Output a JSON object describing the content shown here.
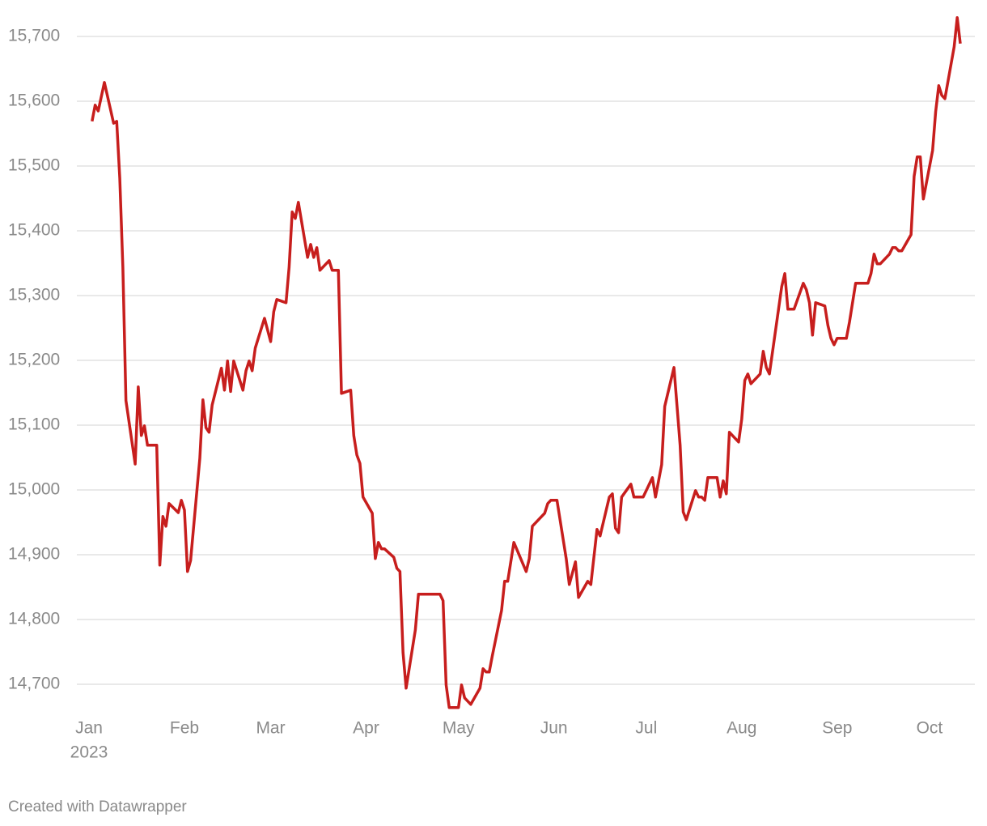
{
  "chart_data": {
    "type": "line",
    "x": [
      1,
      2,
      3,
      5,
      8,
      9,
      10,
      11,
      12,
      15,
      16,
      17,
      18,
      19,
      22,
      23,
      24,
      25,
      26,
      29,
      30,
      31,
      32,
      33,
      36,
      37,
      38,
      39,
      40,
      43,
      44,
      45,
      46,
      47,
      50,
      51,
      52,
      53,
      54,
      57,
      59,
      60,
      61,
      64,
      65,
      66,
      67,
      68,
      71,
      72,
      73,
      74,
      75,
      78,
      79,
      81,
      82,
      85,
      86,
      87,
      88,
      89,
      92,
      93,
      94,
      95,
      96,
      99,
      100,
      101,
      102,
      103,
      106,
      107,
      114,
      115,
      116,
      117,
      120,
      121,
      122,
      124,
      127,
      128,
      129,
      130,
      131,
      134,
      135,
      136,
      138,
      142,
      143,
      144,
      148,
      149,
      150,
      152,
      155,
      156,
      158,
      159,
      162,
      163,
      165,
      166,
      169,
      170,
      171,
      172,
      173,
      176,
      177,
      180,
      183,
      184,
      185,
      186,
      187,
      190,
      192,
      193,
      194,
      197,
      198,
      199,
      200,
      201,
      204,
      205,
      206,
      207,
      208,
      211,
      212,
      213,
      214,
      215,
      218,
      219,
      220,
      221,
      225,
      226,
      227,
      229,
      232,
      233,
      234,
      235,
      236,
      239,
      240,
      241,
      242,
      243,
      246,
      247,
      249,
      253,
      254,
      255,
      256,
      257,
      260,
      261,
      262,
      263,
      264,
      267,
      268,
      269,
      270,
      271,
      274,
      275,
      276,
      277,
      278,
      281,
      282,
      283
    ],
    "series": [
      {
        "color": "#c71e1d",
        "values": [
          15569,
          15594,
          15585,
          15629,
          15566,
          15569,
          15481,
          15344,
          15138,
          15040,
          15159,
          15084,
          15099,
          15069,
          15069,
          14884,
          14959,
          14944,
          14979,
          14965,
          14984,
          14969,
          14874,
          14891,
          15049,
          15139,
          15096,
          15089,
          15131,
          15188,
          15154,
          15199,
          15152,
          15199,
          15154,
          15184,
          15199,
          15184,
          15219,
          15265,
          15229,
          15275,
          15294,
          15289,
          15344,
          15429,
          15419,
          15444,
          15359,
          15379,
          15359,
          15374,
          15339,
          15354,
          15339,
          15339,
          15149,
          15154,
          15084,
          15054,
          15041,
          14989,
          14964,
          14894,
          14919,
          14909,
          14909,
          14896,
          14879,
          14874,
          14749,
          14694,
          14784,
          14839,
          14839,
          14829,
          14699,
          14664,
          14664,
          14699,
          14679,
          14669,
          14694,
          14724,
          14719,
          14719,
          14744,
          14814,
          14859,
          14859,
          14919,
          14874,
          14894,
          14944,
          14964,
          14979,
          14984,
          14984,
          14894,
          14854,
          14889,
          14834,
          14859,
          14854,
          14939,
          14929,
          14989,
          14994,
          14941,
          14934,
          14989,
          15009,
          14989,
          14989,
          15019,
          14989,
          15014,
          15039,
          15129,
          15189,
          15069,
          14966,
          14954,
          14999,
          14989,
          14989,
          14984,
          15019,
          15019,
          14989,
          15014,
          14994,
          15089,
          15074,
          15109,
          15169,
          15179,
          15164,
          15179,
          15214,
          15189,
          15179,
          15314,
          15334,
          15279,
          15279,
          15319,
          15309,
          15289,
          15239,
          15289,
          15284,
          15254,
          15234,
          15224,
          15234,
          15234,
          15259,
          15319,
          15319,
          15334,
          15364,
          15349,
          15349,
          15364,
          15374,
          15374,
          15369,
          15369,
          15394,
          15484,
          15514,
          15514,
          15449,
          15524,
          15584,
          15624,
          15609,
          15604,
          15684,
          15729,
          15689
        ]
      }
    ],
    "xlim": [
      0,
      283
    ],
    "xticks": [
      {
        "value": 0,
        "label": "Jan"
      },
      {
        "value": 31,
        "label": "Feb"
      },
      {
        "value": 59,
        "label": "Mar"
      },
      {
        "value": 90,
        "label": "Apr"
      },
      {
        "value": 120,
        "label": "May"
      },
      {
        "value": 151,
        "label": "Jun"
      },
      {
        "value": 181,
        "label": "Jul"
      },
      {
        "value": 212,
        "label": "Aug"
      },
      {
        "value": 243,
        "label": "Sep"
      },
      {
        "value": 273,
        "label": "Oct"
      }
    ],
    "x_year_label": "2023",
    "ylim": [
      14660,
      15740
    ],
    "yticks": [
      {
        "value": 14700,
        "label": "14,700"
      },
      {
        "value": 14800,
        "label": "14,800"
      },
      {
        "value": 14900,
        "label": "14,900"
      },
      {
        "value": 15000,
        "label": "15,000"
      },
      {
        "value": 15100,
        "label": "15,100"
      },
      {
        "value": 15200,
        "label": "15,200"
      },
      {
        "value": 15300,
        "label": "15,300"
      },
      {
        "value": 15400,
        "label": "15,400"
      },
      {
        "value": 15500,
        "label": "15,500"
      },
      {
        "value": 15600,
        "label": "15,600"
      },
      {
        "value": 15700,
        "label": "15,700"
      }
    ],
    "grid": true,
    "credit": "Created with Datawrapper"
  }
}
